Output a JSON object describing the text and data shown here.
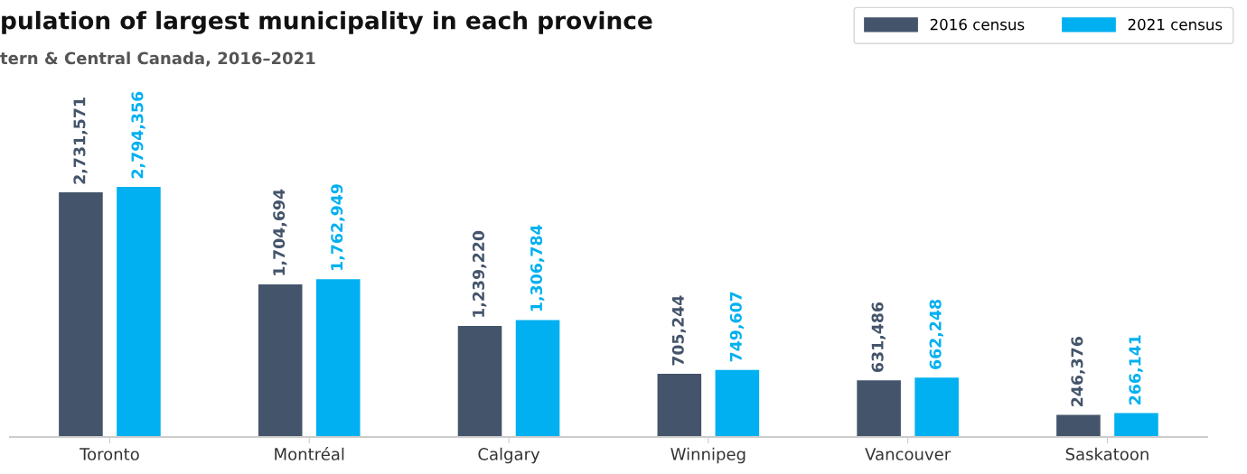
{
  "chart_data": {
    "type": "bar",
    "title": "pulation of largest municipality in each province",
    "subtitle": "tern & Central Canada, 2016–2021",
    "categories": [
      "Toronto",
      "Montréal",
      "Calgary",
      "Winnipeg",
      "Vancouver",
      "Saskatoon"
    ],
    "series": [
      {
        "name": "2016 census",
        "color": "#44546a",
        "values": [
          2731571,
          1704694,
          1239220,
          705244,
          631486,
          246376
        ],
        "value_labels": [
          "2,731,571",
          "1,704,694",
          "1,239,220",
          "705,244",
          "631,486",
          "246,376"
        ]
      },
      {
        "name": "2021 census",
        "color": "#00b0f0",
        "values": [
          2794356,
          1762949,
          1306784,
          749607,
          662248,
          266141
        ],
        "value_labels": [
          "2,794,356",
          "1,762,949",
          "1,306,784",
          "749,607",
          "662,248",
          "266,141"
        ]
      }
    ],
    "legend": "top right",
    "tick_labels": "x"
  }
}
